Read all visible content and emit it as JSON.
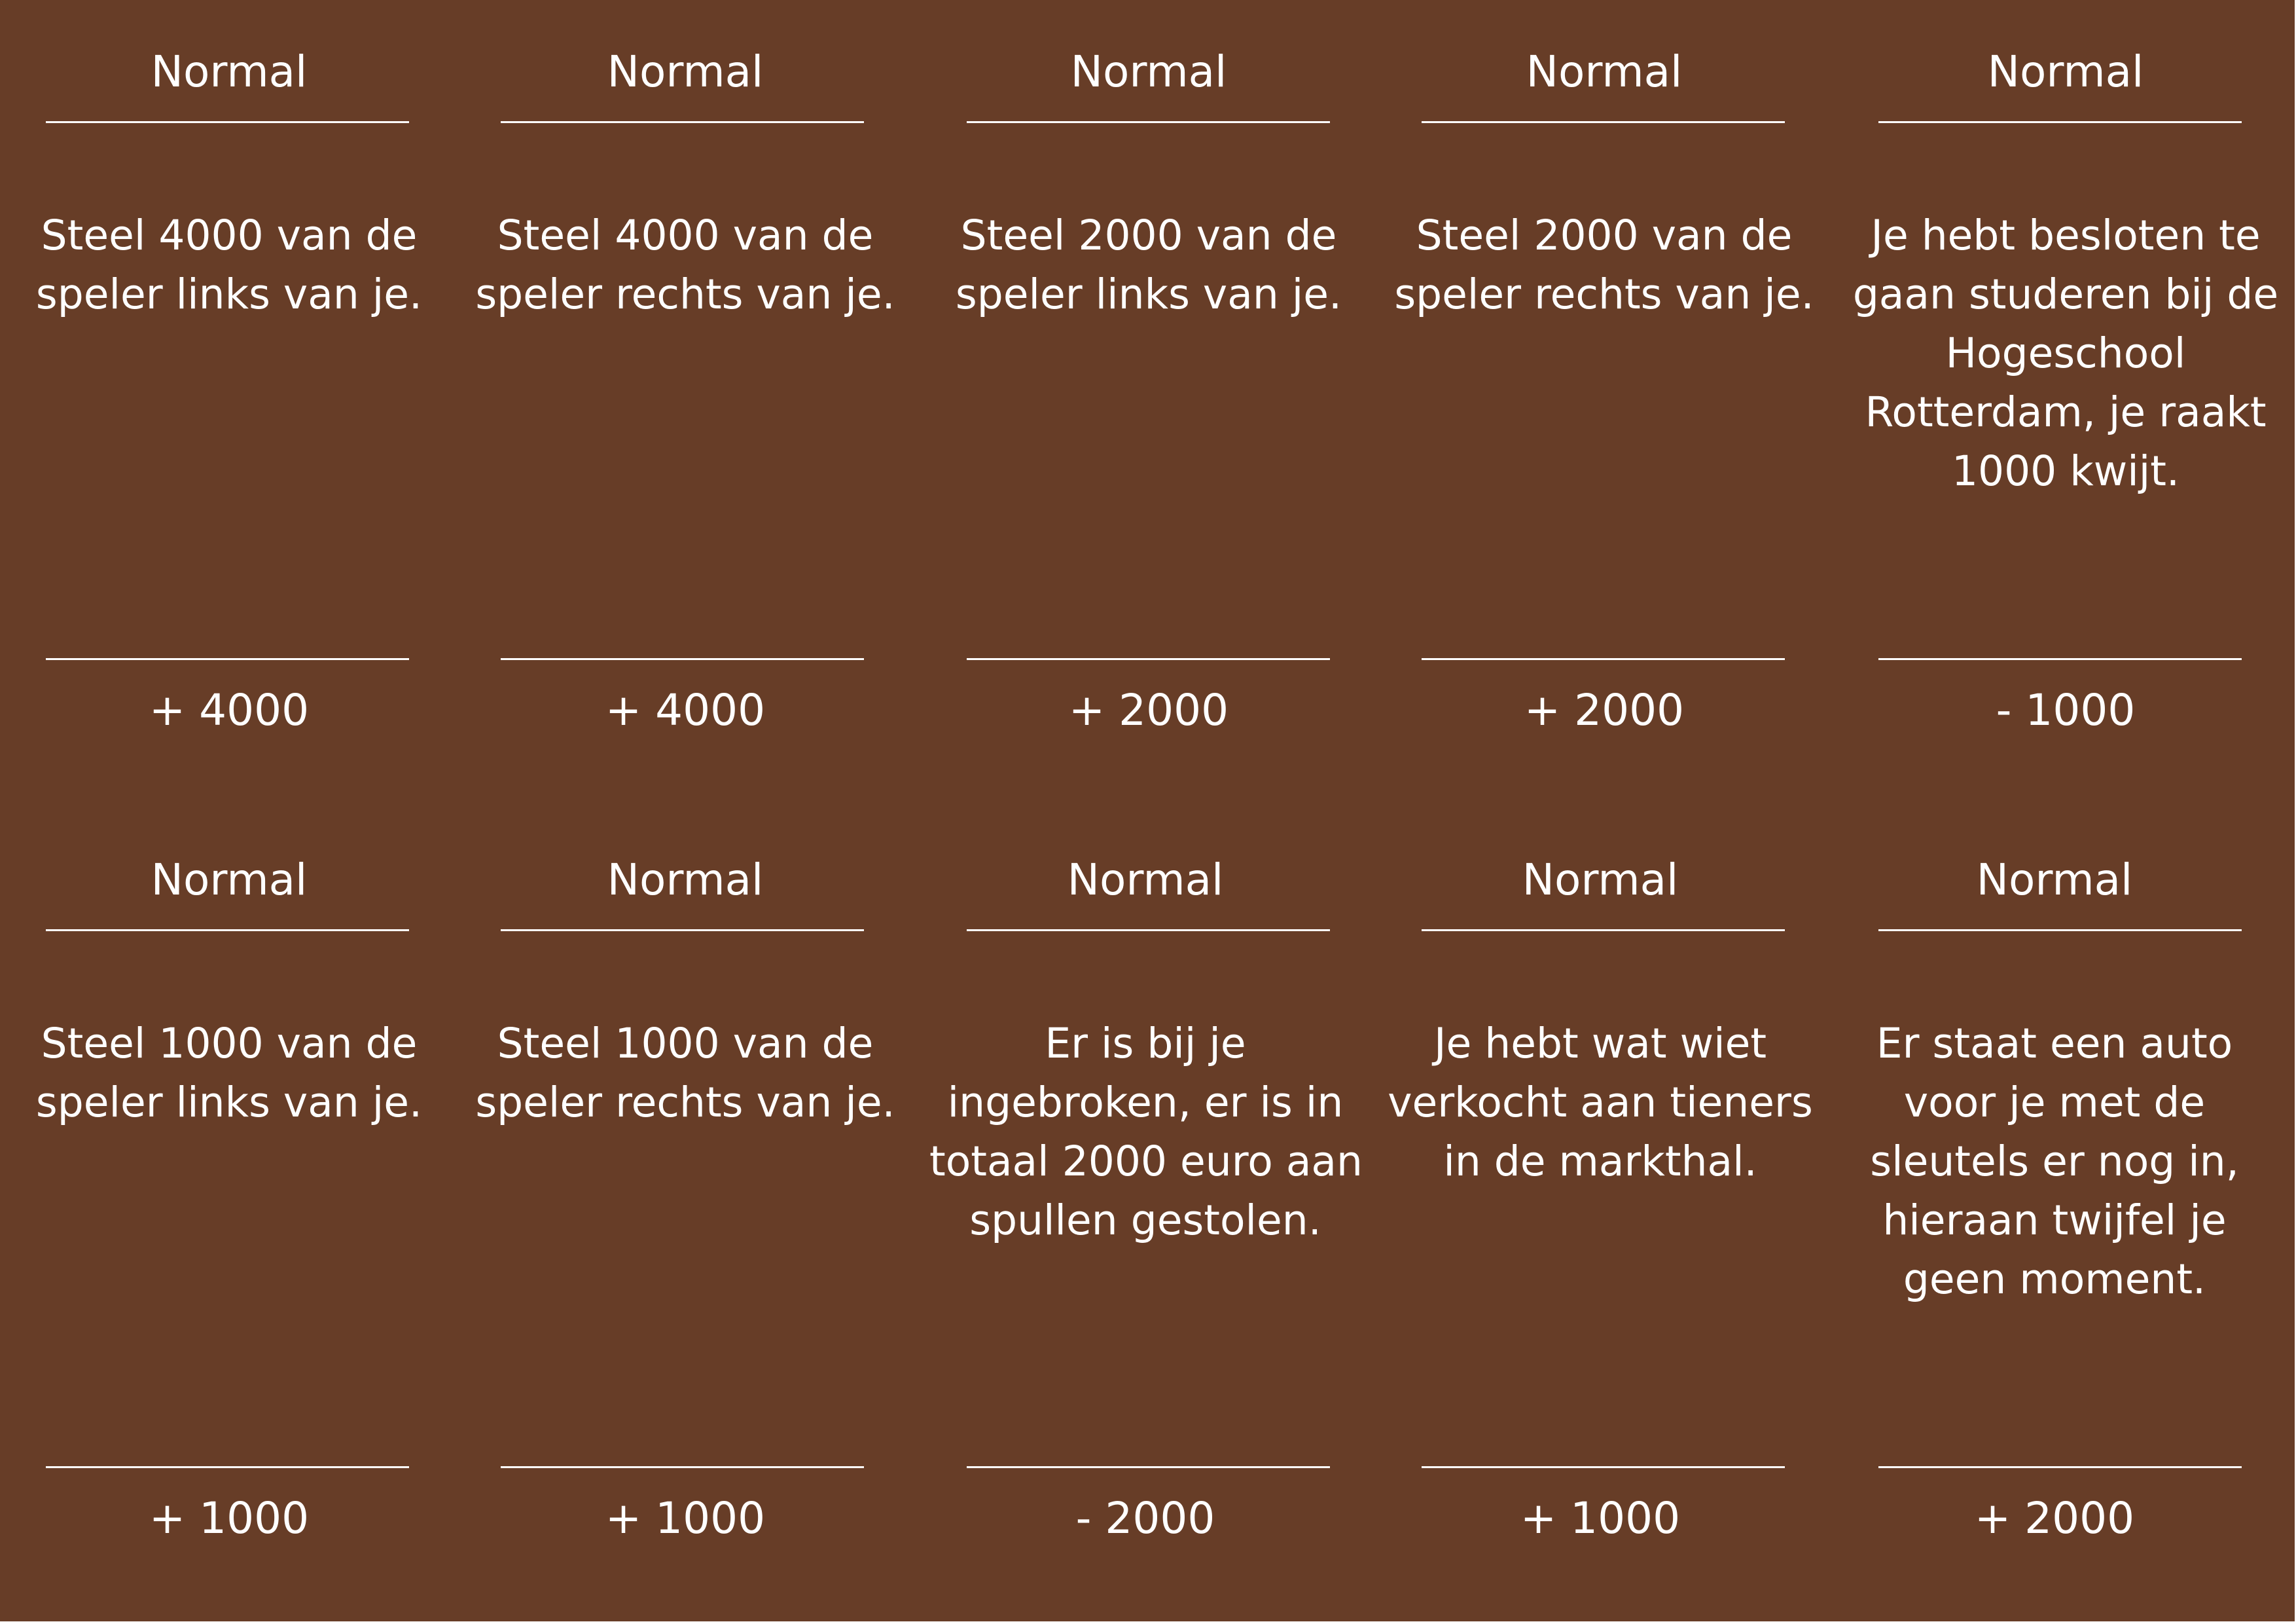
{
  "colors": {
    "card_background": "#673d27",
    "text": "#ffffff",
    "page_margin": "#ffffff"
  },
  "cards": [
    {
      "type": "Normal",
      "text_lines": [
        "Steel 4000 van de",
        "speler links van je."
      ],
      "amount": "+ 4000"
    },
    {
      "type": "Normal",
      "text_lines": [
        "Steel 4000 van de",
        "speler rechts van je."
      ],
      "amount": "+ 4000"
    },
    {
      "type": "Normal",
      "text_lines": [
        "Steel 2000 van de",
        "speler links van je."
      ],
      "amount": "+ 2000"
    },
    {
      "type": "Normal",
      "text_lines": [
        "Steel 2000 van de",
        "speler rechts van je."
      ],
      "amount": "+ 2000"
    },
    {
      "type": "Normal",
      "text_lines": [
        "Je hebt besloten te",
        "gaan studeren bij de",
        "Hogeschool",
        "Rotterdam, je raakt",
        "1000 kwijt."
      ],
      "amount": "- 1000"
    },
    {
      "type": "Normal",
      "text_lines": [
        "Steel 1000 van de",
        "speler links van je."
      ],
      "amount": "+ 1000"
    },
    {
      "type": "Normal",
      "text_lines": [
        "Steel 1000 van de",
        "speler rechts van je."
      ],
      "amount": "+ 1000"
    },
    {
      "type": "Normal",
      "text_lines": [
        "Er is bij je",
        "ingebroken, er is in",
        "totaal 2000 euro aan",
        "spullen gestolen."
      ],
      "amount": "- 2000"
    },
    {
      "type": "Normal",
      "text_lines": [
        "Je hebt wat wiet",
        "verkocht aan tieners",
        "in de markthal."
      ],
      "amount": "+ 1000"
    },
    {
      "type": "Normal",
      "text_lines": [
        "Er staat een auto",
        "voor je met de",
        "sleutels er nog in,",
        "hieraan twijfel je",
        "geen moment."
      ],
      "amount": "+ 2000"
    }
  ]
}
